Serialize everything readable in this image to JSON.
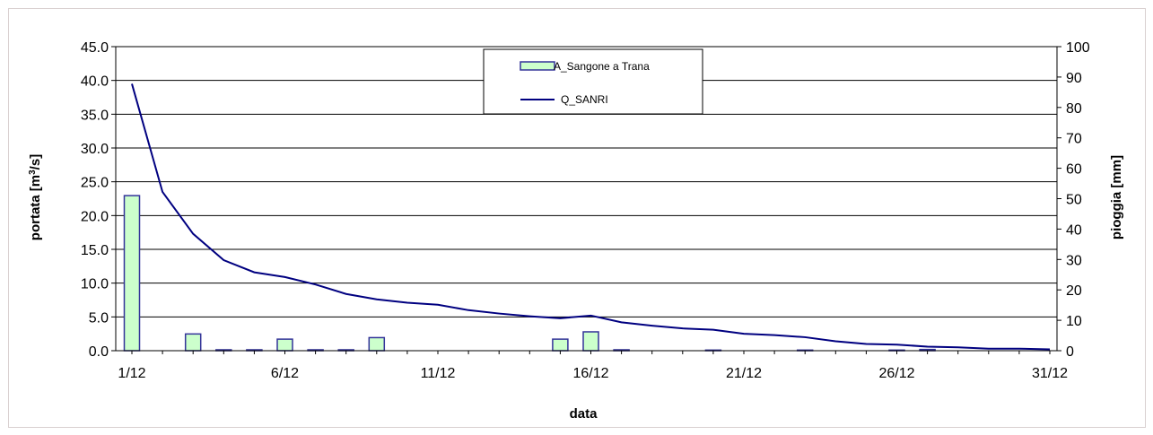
{
  "chart_data": {
    "type": "bar+line",
    "title": "",
    "xlabel": "data",
    "ylabel_left_main": "portata [m",
    "ylabel_left_sup": "3",
    "ylabel_left_tail": "/s]",
    "ylabel_right": "pioggia [mm]",
    "x_ticks": [
      "1/12",
      "6/12",
      "11/12",
      "16/12",
      "21/12",
      "26/12",
      "31/12"
    ],
    "ylim_left": [
      0,
      45
    ],
    "yticks_left": [
      "0.0",
      "5.0",
      "10.0",
      "15.0",
      "20.0",
      "25.0",
      "30.0",
      "35.0",
      "40.0",
      "45.0"
    ],
    "ylim_right": [
      0,
      100
    ],
    "yticks_right": [
      "0",
      "10",
      "20",
      "30",
      "40",
      "50",
      "60",
      "70",
      "80",
      "90",
      "100"
    ],
    "days": [
      1,
      2,
      3,
      4,
      5,
      6,
      7,
      8,
      9,
      10,
      11,
      12,
      13,
      14,
      15,
      16,
      17,
      18,
      19,
      20,
      21,
      22,
      23,
      24,
      25,
      26,
      27,
      28,
      29,
      30,
      31
    ],
    "grid": "horizontal",
    "legend_position": "top-center",
    "series": [
      {
        "name": "A_Sangone a Trana",
        "type": "bar",
        "axis": "right",
        "color": "#ccffcc",
        "edge_color": "#333399",
        "values": [
          51,
          0,
          5.5,
          0.3,
          0.3,
          3.8,
          0.3,
          0.3,
          4.3,
          0,
          0,
          0,
          0,
          0,
          3.8,
          6.2,
          0.3,
          0,
          0,
          0.2,
          0,
          0,
          0.2,
          0,
          0,
          0.2,
          0.4,
          0,
          0,
          0,
          0
        ]
      },
      {
        "name": "Q_SANRI",
        "type": "line",
        "axis": "left",
        "color": "#000080",
        "values": [
          39.5,
          23.5,
          17.3,
          13.4,
          11.6,
          10.9,
          9.8,
          8.4,
          7.6,
          7.1,
          6.8,
          6.0,
          5.5,
          5.1,
          4.8,
          5.2,
          4.2,
          3.7,
          3.3,
          3.1,
          2.5,
          2.3,
          2.0,
          1.4,
          1.0,
          0.9,
          0.6,
          0.5,
          0.3,
          0.3,
          0.2
        ]
      }
    ]
  }
}
